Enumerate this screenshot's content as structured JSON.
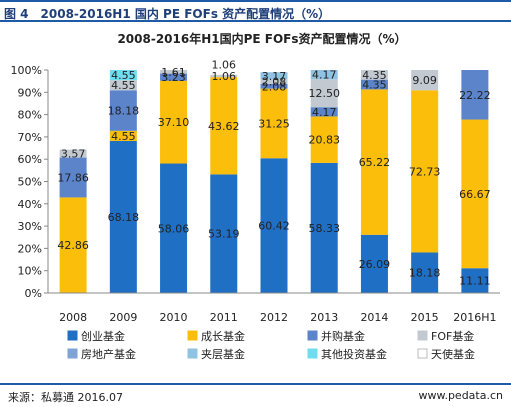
{
  "figure": {
    "title": "图 4　2008-2016H1 国内 PE FOFs 资产配置情况（%）",
    "source": "来源：私募通 2016.07",
    "site": "www.pedata.cn"
  },
  "chart_data": {
    "type": "bar",
    "stacked": true,
    "title": "2008-2016年H1国内PE FOFs资产配置情况（%）",
    "xlabel": "",
    "ylabel": "",
    "ylim": [
      0,
      100
    ],
    "y_ticks": [
      "0%",
      "10%",
      "20%",
      "30%",
      "40%",
      "50%",
      "60%",
      "70%",
      "80%",
      "90%",
      "100%"
    ],
    "grid": false,
    "legend_position": "bottom",
    "categories": [
      "2008",
      "2009",
      "2010",
      "2011",
      "2012",
      "2013",
      "2014",
      "2015",
      "2016H1"
    ],
    "series": [
      {
        "name": "创业基金",
        "color": "#1f6fc5",
        "values": [
          0,
          68.18,
          58.06,
          53.19,
          60.42,
          58.33,
          26.09,
          18.18,
          11.11
        ]
      },
      {
        "name": "成长基金",
        "color": "#fbbe0a",
        "values": [
          42.86,
          4.55,
          37.1,
          43.62,
          31.25,
          20.83,
          65.22,
          72.73,
          66.67
        ]
      },
      {
        "name": "并购基金",
        "color": "#5b84cb",
        "values": [
          17.86,
          18.18,
          3.23,
          0,
          2.08,
          4.17,
          4.35,
          0,
          22.22
        ]
      },
      {
        "name": "FOF基金",
        "color": "#c3c9d1",
        "values": [
          3.57,
          4.55,
          1.61,
          1.06,
          2.08,
          12.5,
          4.35,
          9.09,
          0
        ]
      },
      {
        "name": "房地产基金",
        "color": "#7fa3d4",
        "values": [
          0,
          0,
          0,
          0,
          0,
          0,
          0,
          0,
          0
        ]
      },
      {
        "name": "夹层基金",
        "color": "#8fc3e4",
        "values": [
          0,
          0,
          0,
          0,
          3.17,
          4.17,
          0,
          0,
          0
        ]
      },
      {
        "name": "其他投资基金",
        "color": "#6fdcef",
        "values": [
          0,
          4.55,
          0,
          0,
          0,
          0,
          0,
          0,
          0
        ]
      },
      {
        "name": "天使基金",
        "color": "#ffffff",
        "values": [
          0,
          0,
          0,
          0,
          0,
          0,
          0,
          0,
          0
        ]
      }
    ],
    "data_labels": [
      {
        "category": "2008",
        "series": "成长基金",
        "text": "42.86"
      },
      {
        "category": "2008",
        "series": "并购基金",
        "text": "17.86"
      },
      {
        "category": "2008",
        "series": "FOF基金",
        "text": "3.57"
      },
      {
        "category": "2009",
        "series": "创业基金",
        "text": "68.18"
      },
      {
        "category": "2009",
        "series": "成长基金",
        "text": "4.55"
      },
      {
        "category": "2009",
        "series": "并购基金",
        "text": "18.18"
      },
      {
        "category": "2009",
        "series": "FOF基金",
        "text": "4.55"
      },
      {
        "category": "2009",
        "series": "其他投资基金",
        "text": "4.55"
      },
      {
        "category": "2010",
        "series": "创业基金",
        "text": "58.06"
      },
      {
        "category": "2010",
        "series": "成长基金",
        "text": "37.10"
      },
      {
        "category": "2010",
        "series": "并购基金",
        "text": "3.23"
      },
      {
        "category": "2010",
        "series": "FOF基金",
        "text": "1.61"
      },
      {
        "category": "2011",
        "series": "创业基金",
        "text": "53.19"
      },
      {
        "category": "2011",
        "series": "成长基金",
        "text": "43.62"
      },
      {
        "category": "2011",
        "series": "FOF基金",
        "text": "1.06"
      },
      {
        "category": "2011",
        "series": "FOF基金",
        "text": "1.06"
      },
      {
        "category": "2012",
        "series": "创业基金",
        "text": "60.42"
      },
      {
        "category": "2012",
        "series": "成长基金",
        "text": "31.25"
      },
      {
        "category": "2012",
        "series": "并购基金",
        "text": "2.08"
      },
      {
        "category": "2012",
        "series": "FOF基金",
        "text": "2.08"
      },
      {
        "category": "2012",
        "series": "夹层基金",
        "text": "3.17"
      },
      {
        "category": "2013",
        "series": "创业基金",
        "text": "58.33"
      },
      {
        "category": "2013",
        "series": "成长基金",
        "text": "20.83"
      },
      {
        "category": "2013",
        "series": "并购基金",
        "text": "4.17"
      },
      {
        "category": "2013",
        "series": "FOF基金",
        "text": "12.50"
      },
      {
        "category": "2013",
        "series": "夹层基金",
        "text": "4.17"
      },
      {
        "category": "2014",
        "series": "创业基金",
        "text": "26.09"
      },
      {
        "category": "2014",
        "series": "成长基金",
        "text": "65.22"
      },
      {
        "category": "2014",
        "series": "并购基金",
        "text": "4.35"
      },
      {
        "category": "2014",
        "series": "FOF基金",
        "text": "4.35"
      },
      {
        "category": "2015",
        "series": "创业基金",
        "text": "18.18"
      },
      {
        "category": "2015",
        "series": "成长基金",
        "text": "72.73"
      },
      {
        "category": "2015",
        "series": "FOF基金",
        "text": "9.09"
      },
      {
        "category": "2016H1",
        "series": "创业基金",
        "text": "11.11"
      },
      {
        "category": "2016H1",
        "series": "成长基金",
        "text": "66.67"
      },
      {
        "category": "2016H1",
        "series": "并购基金",
        "text": "22.22"
      }
    ]
  }
}
